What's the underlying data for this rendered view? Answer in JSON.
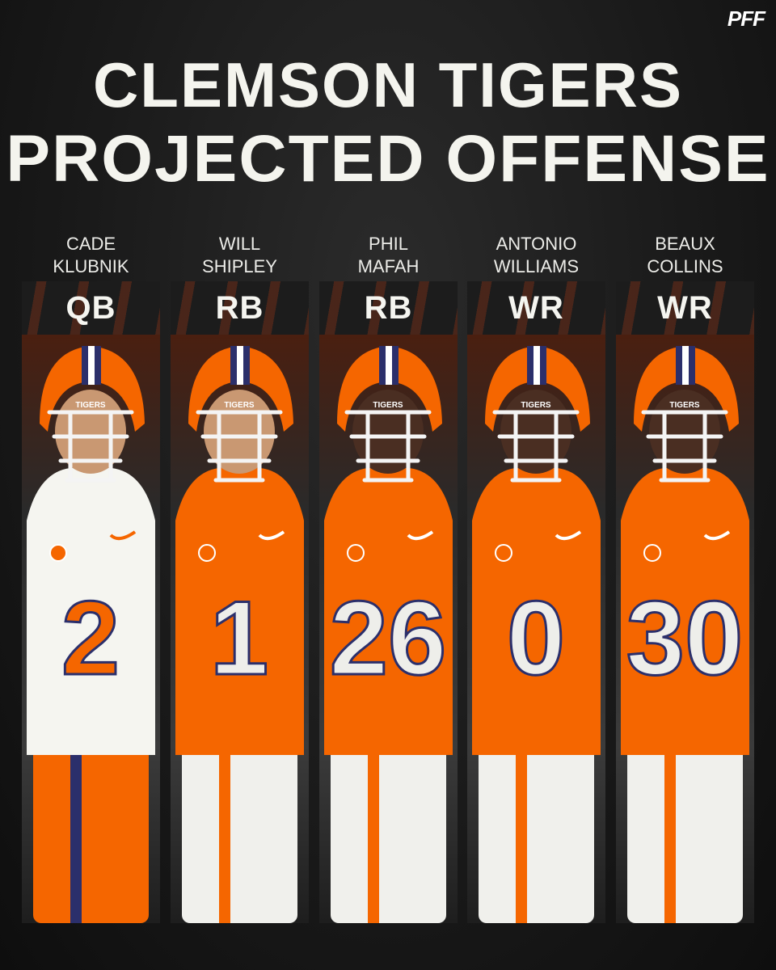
{
  "brand": {
    "logo_text": "PFF"
  },
  "title": {
    "line1": "CLEMSON TIGERS",
    "line2": "PROJECTED OFFENSE"
  },
  "colors": {
    "clemson_orange": "#F56600",
    "navy": "#2B2F6B",
    "white": "#F5F5F0",
    "background": "#1A1A1A"
  },
  "players": [
    {
      "first": "CADE",
      "last": "KLUBNIK",
      "position": "QB",
      "number": "2",
      "jersey": "white",
      "helmet_text": "TIGERS"
    },
    {
      "first": "WILL",
      "last": "SHIPLEY",
      "position": "RB",
      "number": "1",
      "jersey": "orange",
      "helmet_text": "TIGERS"
    },
    {
      "first": "PHIL",
      "last": "MAFAH",
      "position": "RB",
      "number": "26",
      "jersey": "orange",
      "helmet_text": "TIGERS"
    },
    {
      "first": "ANTONIO",
      "last": "WILLIAMS",
      "position": "WR",
      "number": "0",
      "jersey": "orange",
      "helmet_text": "TIGERS"
    },
    {
      "first": "BEAUX",
      "last": "COLLINS",
      "position": "WR",
      "number": "30",
      "jersey": "orange",
      "helmet_text": "TIGERS"
    }
  ]
}
